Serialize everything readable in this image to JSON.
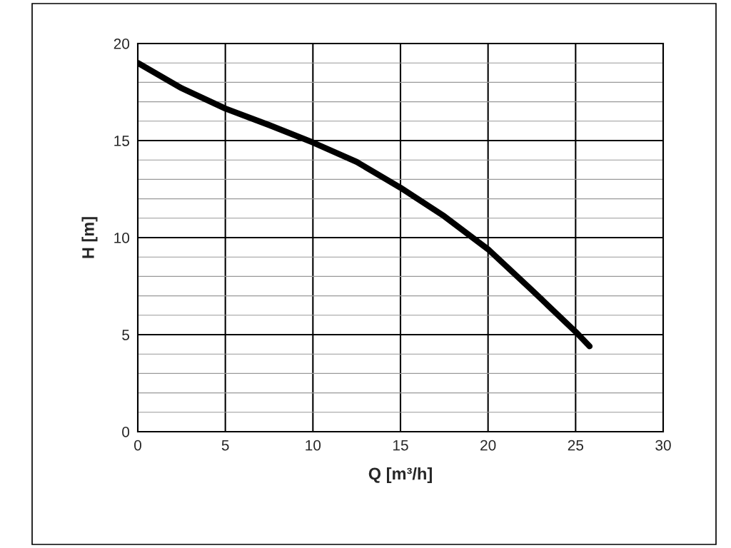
{
  "chart_data": {
    "type": "line",
    "xlabel": "Q [m³/h]",
    "ylabel": "H [m]",
    "x": [
      0,
      2.5,
      5,
      7.5,
      10,
      12.5,
      15,
      17.5,
      20,
      22.5,
      25,
      25.8
    ],
    "series": [
      {
        "color": "#000000",
        "values": [
          19.0,
          17.7,
          16.65,
          15.8,
          14.9,
          13.9,
          12.57,
          11.1,
          9.4,
          7.3,
          5.15,
          4.4
        ]
      }
    ],
    "xlim": [
      0,
      30
    ],
    "ylim": [
      0,
      20
    ],
    "xticks": [
      0,
      5,
      10,
      15,
      20,
      25,
      30
    ],
    "yticks": [
      0,
      {
        "value": 1,
        "label": null
      },
      {
        "value": 2,
        "label": null
      },
      {
        "value": 3,
        "label": null
      },
      {
        "value": 4,
        "label": null
      },
      5,
      {
        "value": 6,
        "label": null
      },
      {
        "value": 7,
        "label": null
      },
      {
        "value": 8,
        "label": null
      },
      {
        "value": 9,
        "label": null
      },
      10,
      {
        "value": 11,
        "label": null
      },
      {
        "value": 12,
        "label": null
      },
      {
        "value": 13,
        "label": null
      },
      {
        "value": 14,
        "label": null
      },
      15,
      {
        "value": 16,
        "label": null
      },
      {
        "value": 17,
        "label": null
      },
      {
        "value": 18,
        "label": null
      },
      {
        "value": 19,
        "label": null
      },
      20
    ],
    "grid": true,
    "legend": false,
    "marker": "none",
    "line_style": "solid"
  }
}
